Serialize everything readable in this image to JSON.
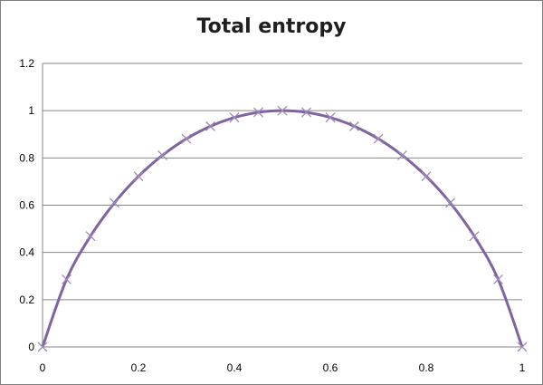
{
  "chart_data": {
    "type": "line",
    "title": "Total entropy",
    "xlabel": "",
    "ylabel": "",
    "xlim": [
      0,
      1
    ],
    "ylim": [
      0,
      1.2
    ],
    "xticks": [
      "0",
      "0.2",
      "0.4",
      "0.6",
      "0.8",
      "1"
    ],
    "yticks": [
      "0",
      "0.2",
      "0.4",
      "0.6",
      "0.8",
      "1",
      "1.2"
    ],
    "grid": "horizontal",
    "legend": "none",
    "line_color": "#8064a2",
    "marker_color": "#9e8bb8",
    "series": [
      {
        "x": [
          0,
          0.05,
          0.1,
          0.15,
          0.2,
          0.25,
          0.3,
          0.35,
          0.4,
          0.45,
          0.5,
          0.55,
          0.6,
          0.65,
          0.7,
          0.75,
          0.8,
          0.85,
          0.9,
          0.95,
          1
        ],
        "values": [
          0,
          0.286,
          0.469,
          0.61,
          0.722,
          0.811,
          0.881,
          0.934,
          0.971,
          0.993,
          1,
          0.993,
          0.971,
          0.934,
          0.881,
          0.811,
          0.722,
          0.61,
          0.469,
          0.286,
          0
        ]
      }
    ]
  }
}
